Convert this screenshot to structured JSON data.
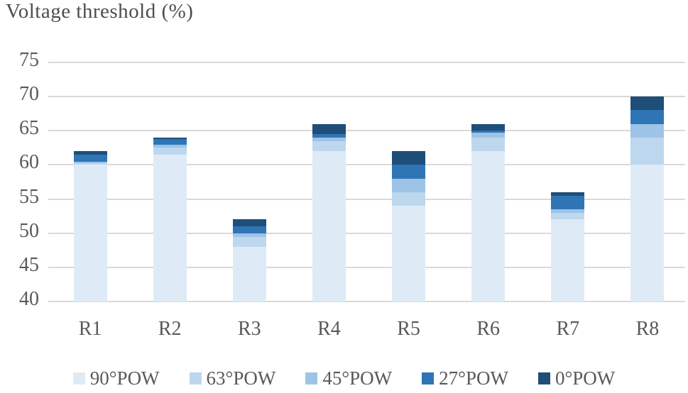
{
  "title": "Voltage threshold (%)",
  "chart_data": {
    "type": "bar",
    "subtype": "overlapped-threshold-bars",
    "title": "Voltage threshold (%)",
    "categories": [
      "R1",
      "R2",
      "R3",
      "R4",
      "R5",
      "R6",
      "R7",
      "R8"
    ],
    "series": [
      {
        "name": "90°POW",
        "color": "#DEEBF7",
        "values": [
          60,
          61.5,
          48,
          62,
          54,
          62,
          52,
          60
        ]
      },
      {
        "name": "63°POW",
        "color": "#BDD7EE",
        "values": [
          60.25,
          62.5,
          49.5,
          63.5,
          56,
          64,
          53,
          64
        ]
      },
      {
        "name": "45°POW",
        "color": "#9DC3E6",
        "values": [
          60.5,
          63,
          50,
          64,
          58,
          64.75,
          53.5,
          66
        ]
      },
      {
        "name": "27°POW",
        "color": "#2E75B6",
        "values": [
          61.5,
          63.75,
          51,
          64.5,
          60,
          65,
          55.5,
          68
        ]
      },
      {
        "name": "0°POW",
        "color": "#1F4E79",
        "values": [
          62,
          64,
          52,
          66,
          62,
          66,
          56,
          70
        ]
      }
    ],
    "note": "values are cumulative stack tops per category; 90°POW is the palest base band, 0°POW the darkest top band",
    "ylim": [
      40,
      75
    ],
    "ytick_step": 5,
    "yticks": [
      75,
      70,
      65,
      60,
      55,
      50,
      45,
      40
    ],
    "grid": "horizontal",
    "gridline_color": "#d9d9d9",
    "text_color": "#595959",
    "legend_position": "bottom",
    "legend_labels": [
      "90°POW",
      "63°POW",
      "45°POW",
      "27°POW",
      "0°POW"
    ]
  }
}
